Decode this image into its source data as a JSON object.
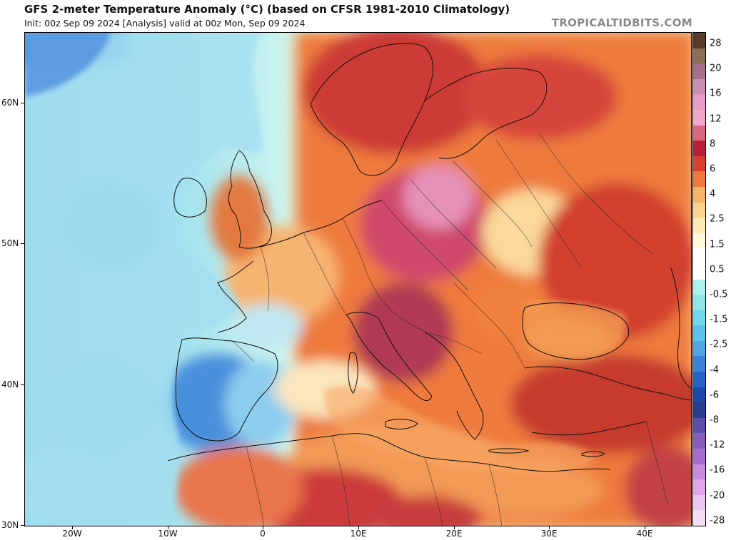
{
  "header": {
    "title": "GFS 2-meter Temperature Anomaly (°C) (based on CFSR 1981-2010 Climatology)",
    "subtitle": "Init: 00z Sep 09 2024   [Analysis]   valid at 00z Mon, Sep 09 2024",
    "brand": "TROPICALTIDBITS.COM"
  },
  "axes": {
    "lat_labels": [
      "60N",
      "50N",
      "40N",
      "30N"
    ],
    "lon_labels": [
      "20W",
      "10W",
      "0",
      "10E",
      "20E",
      "30E",
      "40E"
    ]
  },
  "colorbar": {
    "labels": [
      "28",
      "20",
      "16",
      "12",
      "8",
      "6",
      "4",
      "2.5",
      "1.5",
      "0.5",
      "-0.5",
      "-1.5",
      "-2.5",
      "-4",
      "-6",
      "-8",
      "-12",
      "-16",
      "-20",
      "-28"
    ],
    "colors": [
      "#5a3a28",
      "#8b6f55",
      "#a46f8a",
      "#c98fb0",
      "#e99ac9",
      "#f0a7c8",
      "#d8667f",
      "#b8203a",
      "#d9412e",
      "#ef7a3c",
      "#f7b367",
      "#fbd38f",
      "#fde9b4",
      "#fff8d9",
      "#ffffff",
      "#ffffff",
      "#aef0ee",
      "#8fe6e8",
      "#6fd8ea",
      "#5cc3ea",
      "#4fa6e3",
      "#3a83d6",
      "#2a63c6",
      "#1f48a8",
      "#2a3c8e",
      "#5a4ea8",
      "#8a5dbb",
      "#a66ad0",
      "#c98ae0",
      "#dda7e9",
      "#ecc4f0",
      "#f6ddf6"
    ]
  }
}
